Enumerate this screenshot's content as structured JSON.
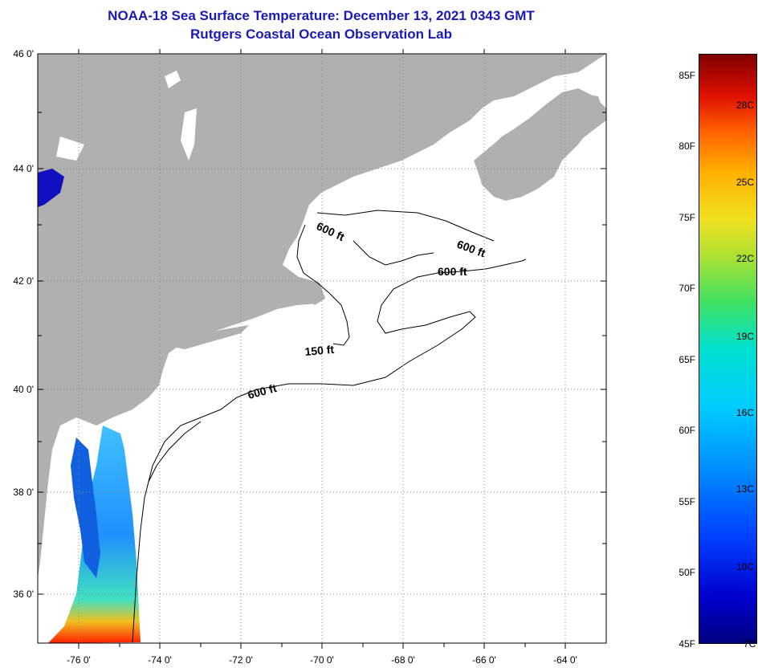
{
  "title": {
    "line1": "NOAA-18 Sea Surface Temperature:  December 13, 2021 0343 GMT",
    "line2": "Rutgers Coastal Ocean Observation Lab"
  },
  "map": {
    "lat_labels": [
      "46 0'",
      "44 0'",
      "42 0'",
      "40 0'",
      "38 0'",
      "36 0'"
    ],
    "lon_labels": [
      "-76 0'",
      "-74 0'",
      "-72 0'",
      "-70 0'",
      "-68 0'",
      "-66 0'",
      "-64 0'"
    ],
    "lat_range": [
      35,
      46
    ],
    "lon_range": [
      -77,
      -63
    ],
    "contour_labels": [
      "600 ft",
      "600 ft",
      "600 ft",
      "150 ft",
      "600 ft"
    ],
    "colors": {
      "land": "#b0b0b0",
      "ocean": "#ffffff",
      "title": "#1a1ab4"
    }
  },
  "colorbar": {
    "fahrenheit": [
      "85F",
      "80F",
      "75F",
      "70F",
      "65F",
      "60F",
      "55F",
      "50F",
      "45F"
    ],
    "celsius": [
      "28C",
      "25C",
      "22C",
      "19C",
      "16C",
      "13C",
      "10C",
      "7C"
    ]
  }
}
